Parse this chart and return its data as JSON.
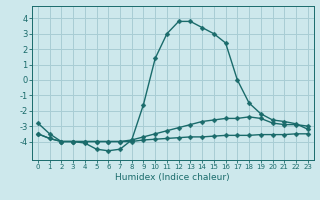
{
  "xlabel": "Humidex (Indice chaleur)",
  "background_color": "#cde8ec",
  "grid_color": "#a8cdd4",
  "line_color": "#1a6b6b",
  "xlim": [
    -0.5,
    23.5
  ],
  "ylim": [
    -5.2,
    4.8
  ],
  "yticks": [
    -4,
    -3,
    -2,
    -1,
    0,
    1,
    2,
    3,
    4
  ],
  "xticks": [
    0,
    1,
    2,
    3,
    4,
    5,
    6,
    7,
    8,
    9,
    10,
    11,
    12,
    13,
    14,
    15,
    16,
    17,
    18,
    19,
    20,
    21,
    22,
    23
  ],
  "line1_x": [
    0,
    1,
    2,
    3,
    4,
    5,
    6,
    7,
    8,
    9,
    10,
    11,
    12,
    13,
    14,
    15,
    16,
    17,
    18,
    19,
    20,
    21,
    22,
    23
  ],
  "line1_y": [
    -3.5,
    -3.8,
    -4.0,
    -4.0,
    -4.0,
    -4.0,
    -4.0,
    -4.0,
    -4.0,
    -3.9,
    -3.85,
    -3.8,
    -3.75,
    -3.7,
    -3.7,
    -3.65,
    -3.6,
    -3.6,
    -3.6,
    -3.55,
    -3.55,
    -3.55,
    -3.5,
    -3.5
  ],
  "line2_x": [
    0,
    1,
    2,
    3,
    4,
    5,
    6,
    7,
    8,
    9,
    10,
    11,
    12,
    13,
    14,
    15,
    16,
    17,
    18,
    19,
    20,
    21,
    22,
    23
  ],
  "line2_y": [
    -3.5,
    -3.8,
    -4.0,
    -4.0,
    -4.0,
    -4.0,
    -4.0,
    -4.0,
    -3.9,
    -3.7,
    -3.5,
    -3.3,
    -3.1,
    -2.9,
    -2.7,
    -2.6,
    -2.5,
    -2.5,
    -2.4,
    -2.5,
    -2.8,
    -2.9,
    -2.9,
    -3.0
  ],
  "line3_x": [
    0,
    1,
    2,
    3,
    4,
    5,
    6,
    7,
    8,
    9,
    10,
    11,
    12,
    13,
    14,
    15,
    16,
    17,
    18,
    19,
    20,
    21,
    22,
    23
  ],
  "line3_y": [
    -2.8,
    -3.5,
    -4.0,
    -4.0,
    -4.1,
    -4.5,
    -4.6,
    -4.5,
    -3.9,
    -1.6,
    1.4,
    3.0,
    3.8,
    3.8,
    3.4,
    3.0,
    2.4,
    0.0,
    -1.5,
    -2.2,
    -2.6,
    -2.7,
    -2.85,
    -3.2
  ],
  "markersize": 2.5,
  "linewidth": 1.0
}
